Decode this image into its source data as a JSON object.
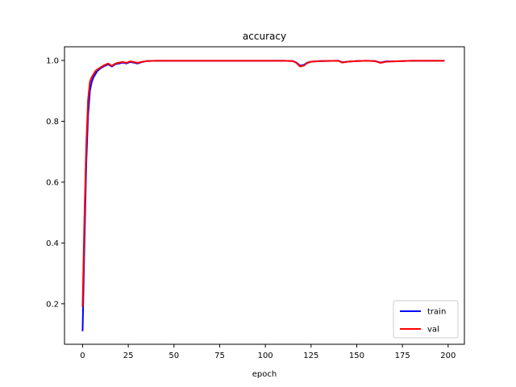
{
  "chart_data": {
    "type": "line",
    "title": "accuracy",
    "xlabel": "epoch",
    "ylabel": "",
    "xlim": [
      -9.9,
      208.9
    ],
    "ylim": [
      0.067,
      1.045
    ],
    "xticks": [
      0,
      25,
      50,
      75,
      100,
      125,
      150,
      175,
      200
    ],
    "yticks": [
      0.2,
      0.4,
      0.6,
      0.8,
      1.0
    ],
    "ytick_labels": [
      "0.2",
      "0.4",
      "0.6",
      "0.8",
      "1.0"
    ],
    "grid": false,
    "legend_position": "lower-right",
    "series": [
      {
        "name": "train",
        "color": "#0000ff",
        "points": [
          [
            0,
            0.11
          ],
          [
            1,
            0.4
          ],
          [
            2,
            0.66
          ],
          [
            3,
            0.82
          ],
          [
            4,
            0.9
          ],
          [
            5,
            0.93
          ],
          [
            6,
            0.945
          ],
          [
            7,
            0.955
          ],
          [
            8,
            0.965
          ],
          [
            10,
            0.975
          ],
          [
            12,
            0.982
          ],
          [
            14,
            0.987
          ],
          [
            16,
            0.98
          ],
          [
            18,
            0.988
          ],
          [
            20,
            0.99
          ],
          [
            22,
            0.993
          ],
          [
            24,
            0.99
          ],
          [
            26,
            0.995
          ],
          [
            28,
            0.993
          ],
          [
            30,
            0.99
          ],
          [
            32,
            0.994
          ],
          [
            35,
            0.998
          ],
          [
            40,
            0.999
          ],
          [
            60,
            0.999
          ],
          [
            80,
            0.999
          ],
          [
            100,
            0.999
          ],
          [
            110,
            0.999
          ],
          [
            115,
            0.998
          ],
          [
            117,
            0.993
          ],
          [
            119,
            0.983
          ],
          [
            121,
            0.985
          ],
          [
            123,
            0.993
          ],
          [
            125,
            0.996
          ],
          [
            130,
            0.998
          ],
          [
            140,
            0.999
          ],
          [
            142,
            0.994
          ],
          [
            145,
            0.996
          ],
          [
            150,
            0.998
          ],
          [
            155,
            0.999
          ],
          [
            160,
            0.998
          ],
          [
            163,
            0.993
          ],
          [
            166,
            0.997
          ],
          [
            170,
            0.997
          ],
          [
            175,
            0.998
          ],
          [
            180,
            0.999
          ],
          [
            190,
            0.999
          ],
          [
            198,
            0.999
          ]
        ]
      },
      {
        "name": "val",
        "color": "#ff0000",
        "points": [
          [
            0,
            0.19
          ],
          [
            1,
            0.48
          ],
          [
            2,
            0.72
          ],
          [
            3,
            0.87
          ],
          [
            4,
            0.93
          ],
          [
            5,
            0.945
          ],
          [
            6,
            0.955
          ],
          [
            7,
            0.965
          ],
          [
            8,
            0.97
          ],
          [
            10,
            0.978
          ],
          [
            12,
            0.985
          ],
          [
            14,
            0.99
          ],
          [
            16,
            0.982
          ],
          [
            18,
            0.99
          ],
          [
            20,
            0.993
          ],
          [
            22,
            0.995
          ],
          [
            24,
            0.992
          ],
          [
            26,
            0.997
          ],
          [
            28,
            0.995
          ],
          [
            30,
            0.992
          ],
          [
            32,
            0.995
          ],
          [
            35,
            0.998
          ],
          [
            40,
            0.999
          ],
          [
            60,
            0.999
          ],
          [
            80,
            0.999
          ],
          [
            100,
            0.999
          ],
          [
            110,
            0.999
          ],
          [
            115,
            0.998
          ],
          [
            117,
            0.992
          ],
          [
            119,
            0.98
          ],
          [
            121,
            0.983
          ],
          [
            123,
            0.992
          ],
          [
            125,
            0.996
          ],
          [
            130,
            0.998
          ],
          [
            140,
            0.999
          ],
          [
            142,
            0.993
          ],
          [
            145,
            0.996
          ],
          [
            150,
            0.998
          ],
          [
            155,
            0.999
          ],
          [
            160,
            0.998
          ],
          [
            163,
            0.992
          ],
          [
            166,
            0.996
          ],
          [
            170,
            0.997
          ],
          [
            175,
            0.998
          ],
          [
            180,
            0.999
          ],
          [
            190,
            0.999
          ],
          [
            198,
            0.999
          ]
        ]
      }
    ]
  }
}
